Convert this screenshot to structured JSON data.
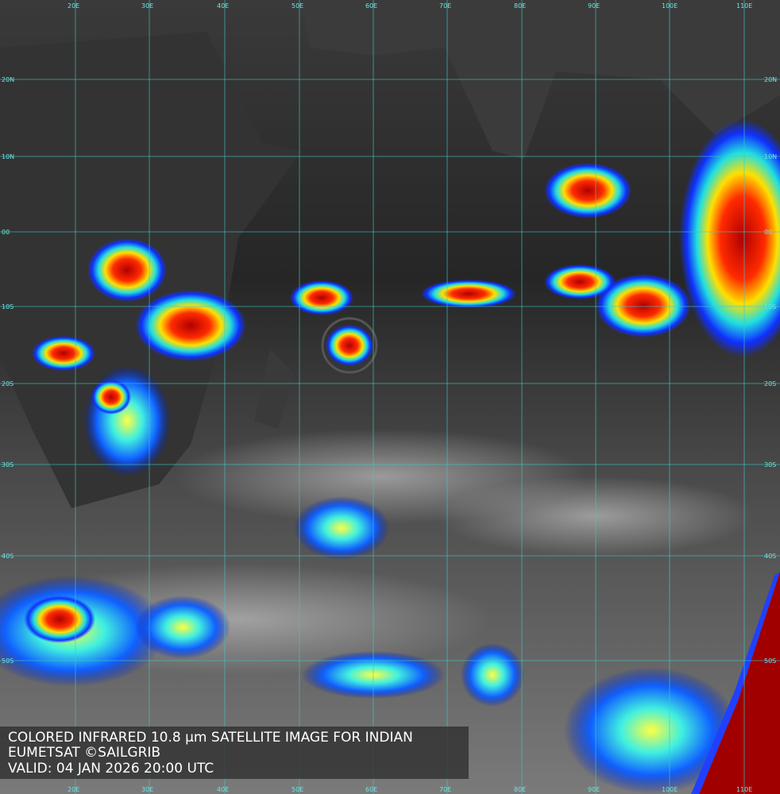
{
  "map": {
    "lon_labels": [
      "20E",
      "30E",
      "40E",
      "50E",
      "60E",
      "70E",
      "80E",
      "90E",
      "100E",
      "110E"
    ],
    "lat_labels": [
      "20N",
      "10N",
      "00",
      "10S",
      "20S",
      "30S",
      "40S",
      "50S"
    ],
    "caption": [
      "COLORED INFRARED 10.8 μm SATELLITE IMAGE FOR INDIAN",
      "EUMETSAT ©SAILGRIB",
      "VALID:  04 JAN 2026 20:00 UTC"
    ]
  }
}
